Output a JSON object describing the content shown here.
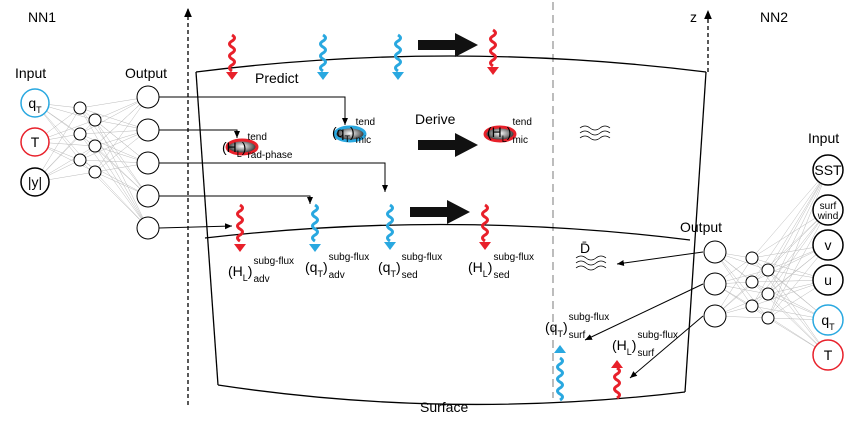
{
  "nn1": {
    "title": "NN1",
    "input_label": "Input",
    "output_label": "Output",
    "inputs": [
      {
        "text": "q",
        "sub": "T"
      },
      {
        "text": "T"
      },
      {
        "text": "|y|"
      }
    ]
  },
  "domain": {
    "predict": "Predict",
    "derive": "Derive",
    "surface": "Surface",
    "z_label": "z",
    "d_bar": "D̄"
  },
  "terms": [
    {
      "left": "(H",
      "left_sub": "L",
      "right": ")",
      "sup": "tend",
      "sub": "rad-phase"
    },
    {
      "left": "(q",
      "left_sub": "T",
      "right": ")",
      "sup": "tend",
      "sub": "mic"
    },
    {
      "left": "(H",
      "left_sub": "L",
      "right": ")",
      "sup": "tend",
      "sub": "mic"
    },
    {
      "left": "(H",
      "left_sub": "L",
      "right": ")",
      "sup": "subg-flux",
      "sub": "adv"
    },
    {
      "left": "(q",
      "left_sub": "T",
      "right": ")",
      "sup": "subg-flux",
      "sub": "adv"
    },
    {
      "left": "(q",
      "left_sub": "T",
      "right": ")",
      "sup": "subg-flux",
      "sub": "sed"
    },
    {
      "left": "(H",
      "left_sub": "L",
      "right": ")",
      "sup": "subg-flux",
      "sub": "sed"
    },
    {
      "left": "(q",
      "left_sub": "T",
      "right": ")",
      "sup": "subg-flux",
      "sub": "surf"
    },
    {
      "left": "(H",
      "left_sub": "L",
      "right": ")",
      "sup": "subg-flux",
      "sub": "surf"
    }
  ],
  "nn2": {
    "title": "NN2",
    "input_label": "Input",
    "output_label": "Output",
    "inputs": [
      {
        "text": "SST"
      },
      {
        "text": "surf",
        "line2": "wind"
      },
      {
        "text": "v"
      },
      {
        "text": "u"
      },
      {
        "text": "q",
        "sub": "T"
      },
      {
        "text": "T"
      }
    ]
  }
}
